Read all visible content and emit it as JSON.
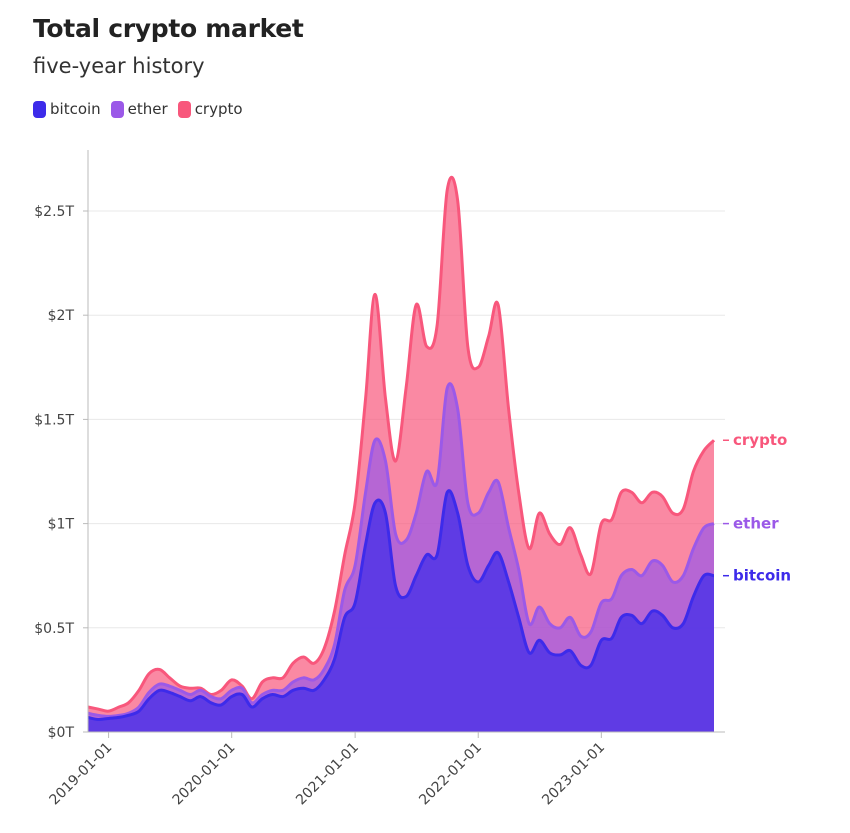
{
  "header": {
    "title": "Total crypto market",
    "subtitle": "five-year history"
  },
  "colors": {
    "bitcoin": "#3d2bea",
    "ether": "#9b59e8",
    "crypto": "#f8577c",
    "grid": "#e8e8e8",
    "axis": "#bbbbbb"
  },
  "chart_data": {
    "type": "area",
    "stacked": true,
    "title": "Total crypto market",
    "subtitle": "five-year history",
    "xlabel": "",
    "ylabel": "",
    "x": [
      "2018-11-01",
      "2018-12-01",
      "2019-01-01",
      "2019-02-01",
      "2019-03-01",
      "2019-04-01",
      "2019-05-01",
      "2019-06-01",
      "2019-07-01",
      "2019-08-01",
      "2019-09-01",
      "2019-10-01",
      "2019-11-01",
      "2019-12-01",
      "2020-01-01",
      "2020-02-01",
      "2020-03-01",
      "2020-04-01",
      "2020-05-01",
      "2020-06-01",
      "2020-07-01",
      "2020-08-01",
      "2020-09-01",
      "2020-10-01",
      "2020-11-01",
      "2020-12-01",
      "2021-01-01",
      "2021-02-01",
      "2021-03-01",
      "2021-04-01",
      "2021-05-01",
      "2021-06-01",
      "2021-07-01",
      "2021-08-01",
      "2021-09-01",
      "2021-10-01",
      "2021-11-01",
      "2021-12-01",
      "2022-01-01",
      "2022-02-01",
      "2022-03-01",
      "2022-04-01",
      "2022-05-01",
      "2022-06-01",
      "2022-07-01",
      "2022-08-01",
      "2022-09-01",
      "2022-10-01",
      "2022-11-01",
      "2022-12-01",
      "2023-01-01",
      "2023-02-01",
      "2023-03-01",
      "2023-04-01",
      "2023-05-01",
      "2023-06-01",
      "2023-07-01",
      "2023-08-01",
      "2023-09-01",
      "2023-10-01",
      "2023-11-01",
      "2023-12-01"
    ],
    "series": [
      {
        "name": "bitcoin",
        "values": [
          0.07,
          0.06,
          0.065,
          0.07,
          0.08,
          0.1,
          0.16,
          0.2,
          0.19,
          0.17,
          0.15,
          0.17,
          0.14,
          0.13,
          0.17,
          0.18,
          0.12,
          0.16,
          0.18,
          0.17,
          0.2,
          0.21,
          0.2,
          0.25,
          0.35,
          0.55,
          0.62,
          0.9,
          1.1,
          1.05,
          0.7,
          0.65,
          0.75,
          0.85,
          0.85,
          1.15,
          1.05,
          0.8,
          0.72,
          0.8,
          0.86,
          0.72,
          0.55,
          0.38,
          0.44,
          0.38,
          0.37,
          0.39,
          0.32,
          0.32,
          0.44,
          0.45,
          0.55,
          0.56,
          0.52,
          0.58,
          0.56,
          0.5,
          0.52,
          0.65,
          0.75,
          0.75
        ]
      },
      {
        "name": "ether",
        "values": [
          0.09,
          0.08,
          0.075,
          0.08,
          0.09,
          0.12,
          0.19,
          0.23,
          0.22,
          0.2,
          0.18,
          0.2,
          0.17,
          0.16,
          0.2,
          0.21,
          0.14,
          0.18,
          0.2,
          0.2,
          0.24,
          0.26,
          0.25,
          0.3,
          0.42,
          0.68,
          0.8,
          1.15,
          1.4,
          1.3,
          0.95,
          0.92,
          1.05,
          1.25,
          1.2,
          1.65,
          1.55,
          1.1,
          1.05,
          1.15,
          1.2,
          0.98,
          0.78,
          0.52,
          0.6,
          0.52,
          0.5,
          0.55,
          0.46,
          0.48,
          0.62,
          0.64,
          0.75,
          0.78,
          0.75,
          0.82,
          0.8,
          0.72,
          0.75,
          0.88,
          0.98,
          1.0
        ]
      },
      {
        "name": "crypto",
        "values": [
          0.12,
          0.11,
          0.1,
          0.12,
          0.14,
          0.2,
          0.28,
          0.3,
          0.26,
          0.22,
          0.21,
          0.21,
          0.18,
          0.2,
          0.25,
          0.22,
          0.16,
          0.24,
          0.26,
          0.26,
          0.33,
          0.36,
          0.33,
          0.4,
          0.58,
          0.85,
          1.1,
          1.6,
          2.1,
          1.6,
          1.3,
          1.65,
          2.05,
          1.85,
          1.95,
          2.6,
          2.55,
          1.85,
          1.75,
          1.9,
          2.05,
          1.55,
          1.15,
          0.88,
          1.05,
          0.95,
          0.9,
          0.98,
          0.85,
          0.76,
          1.0,
          1.02,
          1.15,
          1.15,
          1.1,
          1.15,
          1.13,
          1.05,
          1.07,
          1.25,
          1.35,
          1.4
        ]
      }
    ],
    "y_ticks": [
      "$0T",
      "$0.5T",
      "$1T",
      "$1.5T",
      "$2T",
      "$2.5T"
    ],
    "y_tick_values": [
      0,
      0.5,
      1,
      1.5,
      2,
      2.5
    ],
    "ylim": [
      0,
      2.8
    ],
    "x_ticks": [
      "2019-01-01",
      "2020-01-01",
      "2021-01-01",
      "2022-01-01",
      "2023-01-01"
    ],
    "legend": [
      "bitcoin",
      "ether",
      "crypto"
    ],
    "end_labels": [
      "crypto",
      "ether",
      "bitcoin"
    ],
    "legend_position": "top-left",
    "grid": true
  }
}
